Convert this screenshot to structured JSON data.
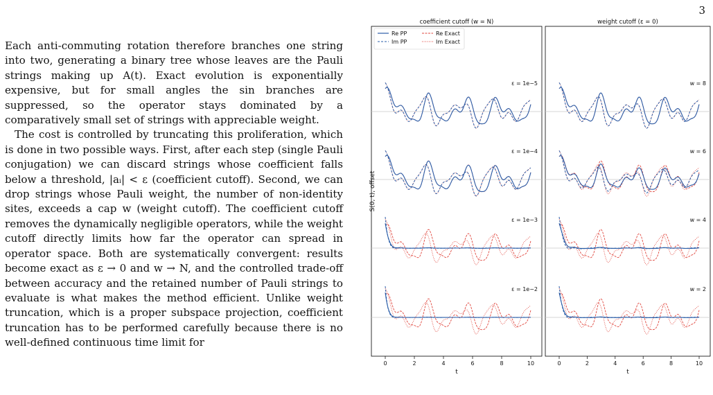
{
  "page_number": "3",
  "paragraphs": [
    "Each anti-commuting rotation therefore branches one string into two, generating a binary tree whose leaves are the Pauli strings making up A(t). Exact evolution is exponentially expensive, but for small angles the sin branches are suppressed, so the operator stays dominated by a comparatively small set of strings with appreciable weight.",
    "The cost is controlled by truncating this proliferation, which is done in two possible ways. First, after each step (single Pauli conjugation) we can discard strings whose coefficient falls below a threshold, |aᵢ| < ε (coefficient cutoff). Second, we can drop strings whose Pauli weight, the number of non-identity sites, exceeds a cap w (weight cutoff). The coefficient cutoff removes the dynamically negligible operators, while the weight cutoff directly limits how far the operator can spread in operator space. Both are systematically convergent: results become exact as ε → 0 and w → N, and the controlled trade-off between accuracy and the retained number of Pauli strings to evaluate is what makes the method efficient. Unlike weight truncation, which is a proper subspace projection, coefficient truncation has to be performed carefully because there is no well-defined continuous time limit for"
  ],
  "figure": {
    "ylabel": "S(0, t), offset",
    "xlabel": "t",
    "x_ticks": [
      "0",
      "2",
      "4",
      "6",
      "8",
      "10"
    ],
    "legend": [
      "Re PP",
      "Im PP",
      "Re Exact",
      "Im Exact"
    ],
    "colors": {
      "pp": "#2a5da8",
      "exact": "#e0453c",
      "baseline": "#c8c8c8"
    },
    "panels": [
      {
        "title": "coefficient cutoff (w = N)",
        "rows": [
          {
            "label": "ε = 1e−5",
            "fidelity": 1.0
          },
          {
            "label": "ε = 1e−4",
            "fidelity": 0.97
          },
          {
            "label": "ε = 1e−3",
            "fidelity": 0.2
          },
          {
            "label": "ε = 1e−2",
            "fidelity": 0.1
          }
        ]
      },
      {
        "title": "weight cutoff (ε = 0)",
        "rows": [
          {
            "label": "w = 8",
            "fidelity": 1.0
          },
          {
            "label": "w = 6",
            "fidelity": 0.8
          },
          {
            "label": "w = 4",
            "fidelity": 0.45
          },
          {
            "label": "w = 2",
            "fidelity": 0.3
          }
        ]
      }
    ]
  }
}
